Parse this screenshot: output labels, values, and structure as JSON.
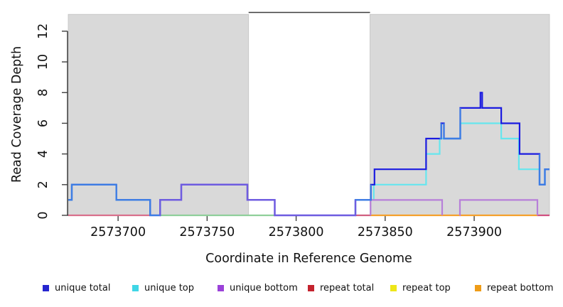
{
  "chart_data": {
    "type": "line",
    "subtype": "step-coverage",
    "title": "",
    "xlabel": "Coordinate in Reference Genome",
    "ylabel": "Read Coverage Depth",
    "xlim": [
      2573672,
      2573942.3
    ],
    "ylim": [
      0,
      13.2
    ],
    "x_ticks": [
      2573700,
      2573750,
      2573800,
      2573850,
      2573900
    ],
    "y_ticks": [
      0,
      2,
      4,
      6,
      8,
      10,
      12
    ],
    "grid": false,
    "legend_position": "bottom",
    "shaded_regions": [
      {
        "x0": 2573672,
        "x1": 2573773.3,
        "color": "#d9d9d9"
      },
      {
        "x0": 2573841.5,
        "x1": 2573942.3,
        "color": "#d9d9d9"
      }
    ],
    "gap_marker": {
      "x0": 2573773.3,
      "x1": 2573841.5,
      "color": "#3c3c3c"
    },
    "series": [
      {
        "name": "unique total",
        "color": "#1b1be0",
        "blend_over_top_color": "#3d7ee4",
        "blend_over_bottom_color": "#6f5ce0",
        "steps": [
          [
            2573672,
            1
          ],
          [
            2573674,
            2
          ],
          [
            2573699,
            1
          ],
          [
            2573718,
            0
          ],
          [
            2573723.6,
            1
          ],
          [
            2573735.5,
            2
          ],
          [
            2573772.6,
            1
          ],
          [
            2573788,
            0
          ],
          [
            2573833.3,
            1
          ],
          [
            2573842,
            2
          ],
          [
            2573844,
            3
          ],
          [
            2573873,
            5
          ],
          [
            2573881.5,
            6
          ],
          [
            2573883,
            5
          ],
          [
            2573892.2,
            7
          ],
          [
            2573903.5,
            8
          ],
          [
            2573904.5,
            7
          ],
          [
            2573915.2,
            6
          ],
          [
            2573925.5,
            4
          ],
          [
            2573936.7,
            2
          ],
          [
            2573939.7,
            3
          ]
        ],
        "clips": [
          [
            2573672,
            2573942.3
          ]
        ],
        "overlays_top": [
          [
            2573672,
            2573723.6
          ],
          [
            2573833.3,
            2573842
          ],
          [
            2573880.6,
            2573881.5
          ],
          [
            2573883,
            2573892.2
          ],
          [
            2573936.7,
            2573942.3
          ]
        ],
        "overlays_bottom": [
          [
            2573723.5,
            2573833.3
          ]
        ]
      },
      {
        "name": "unique top",
        "color": "#66e6ee",
        "steps": [
          [
            2573672,
            1
          ],
          [
            2573674,
            2
          ],
          [
            2573699,
            1
          ],
          [
            2573718,
            0
          ],
          [
            2573833.3,
            1
          ],
          [
            2573843.6,
            2
          ],
          [
            2573873,
            4
          ],
          [
            2573880.6,
            5
          ],
          [
            2573892.2,
            6
          ],
          [
            2573915.2,
            5
          ],
          [
            2573925.1,
            3
          ],
          [
            2573936.7,
            2
          ],
          [
            2573939.7,
            3
          ]
        ],
        "clips": [
          [
            2573672,
            2573718.01
          ],
          [
            2573833.3,
            2573942.3
          ]
        ]
      },
      {
        "name": "unique bottom",
        "color": "#b77fd9",
        "steps": [
          [
            2573672,
            0
          ],
          [
            2573723.6,
            1
          ],
          [
            2573735.5,
            2
          ],
          [
            2573772.6,
            1
          ],
          [
            2573788,
            0
          ],
          [
            2573841.8,
            1
          ],
          [
            2573882,
            0
          ],
          [
            2573892,
            1
          ],
          [
            2573935.5,
            0
          ]
        ],
        "clips": [
          [
            2573723.6,
            2573788.01
          ],
          [
            2573841.8,
            2573882.01
          ],
          [
            2573891.9,
            2573935.51
          ]
        ]
      },
      {
        "name": "repeat total",
        "color": "#d06080",
        "steps": [
          [
            2573672,
            0
          ]
        ],
        "clips": []
      },
      {
        "name": "repeat top",
        "color": "#eee619",
        "steps": [
          [
            2573672,
            0
          ]
        ],
        "clips": []
      },
      {
        "name": "repeat bottom",
        "color": "#f5a02c",
        "steps": [
          [
            2573672,
            0
          ]
        ],
        "clips": []
      }
    ],
    "baseline_segments": [
      {
        "x0": 2573672,
        "x1": 2573718,
        "color": "#d9708c"
      },
      {
        "x0": 2573723.6,
        "x1": 2573788,
        "color": "#8fcf9a"
      },
      {
        "x0": 2573833.3,
        "x1": 2573842,
        "color": "#d06080"
      },
      {
        "x0": 2573842,
        "x1": 2573935.5,
        "color": "#f5a02c"
      },
      {
        "x0": 2573935.5,
        "x1": 2573942.3,
        "color": "#d05080"
      }
    ]
  },
  "legend": {
    "items": [
      {
        "label": "unique total",
        "color": "#2626cf"
      },
      {
        "label": "unique top",
        "color": "#3fd6e6"
      },
      {
        "label": "unique bottom",
        "color": "#9b42d9"
      },
      {
        "label": "repeat total",
        "color": "#c4232e"
      },
      {
        "label": "repeat top",
        "color": "#eee619"
      },
      {
        "label": "repeat bottom",
        "color": "#ef9c17"
      }
    ]
  }
}
